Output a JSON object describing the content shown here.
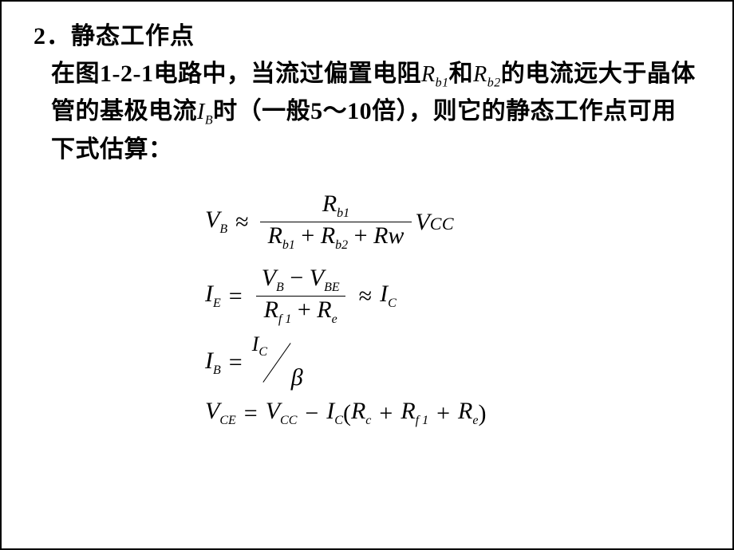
{
  "heading": "2．静态工作点",
  "paragraph": {
    "p1": "在图1-2-1电路中，当流过偏置电阻",
    "rb1": "R",
    "rb1_sub": "b1",
    "p2": "和",
    "rb2": "R",
    "rb2_sub": "b2",
    "p3": "的电流远大于晶体管的基极电流",
    "ib": "I",
    "ib_sub": "B",
    "p4": "时（一般5～10倍），则它的静态工作点可用下式估算："
  },
  "eq1": {
    "lhs_sym": "V",
    "lhs_sub": "B",
    "approx": "≈",
    "num_sym": "R",
    "num_sub": "b1",
    "den_t1_sym": "R",
    "den_t1_sub": "b1",
    "plus1": "+",
    "den_t2_sym": "R",
    "den_t2_sub": "b2",
    "plus2": "+",
    "den_t3": "Rw",
    "rhs_sym": "V",
    "rhs_txt": "CC"
  },
  "eq2": {
    "lhs_sym": "I",
    "lhs_sub": "E",
    "eq": "=",
    "num_t1_sym": "V",
    "num_t1_sub": "B",
    "minus": "−",
    "num_t2_sym": "V",
    "num_t2_sub": "BE",
    "den_t1_sym": "R",
    "den_t1_sub": "f 1",
    "plus": "+",
    "den_t2_sym": "R",
    "den_t2_sub": "e",
    "approx": "≈",
    "rhs_sym": "I",
    "rhs_sub": "C"
  },
  "eq3": {
    "lhs_sym": "I",
    "lhs_sub": "B",
    "eq": "=",
    "num_sym": "I",
    "num_sub": "C",
    "den": "β"
  },
  "eq4": {
    "lhs_sym": "V",
    "lhs_sub": "CE",
    "eq": "=",
    "t1_sym": "V",
    "t1_sub": "CC",
    "minus": "−",
    "t2_sym": "I",
    "t2_sub": "C",
    "lpar": "(",
    "t3_sym": "R",
    "t3_sub": "c",
    "plus1": "+",
    "t4_sym": "R",
    "t4_sub": "f 1",
    "plus2": "+",
    "t5_sym": "R",
    "t5_sub": "e",
    "rpar": ")"
  }
}
